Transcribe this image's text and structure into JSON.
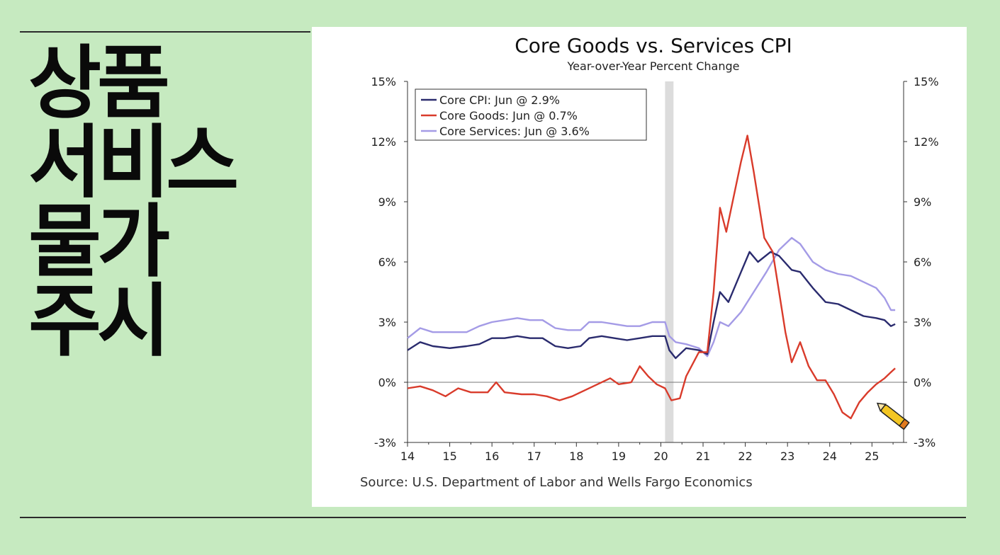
{
  "side_title": {
    "lines": [
      "상품",
      "서비스",
      "물가",
      "주시"
    ]
  },
  "stray_mark": "o",
  "chart_data": {
    "type": "line",
    "title": "Core Goods vs. Services CPI",
    "subtitle": "Year-over-Year Percent Change",
    "source": "Source: U.S. Department of Labor and Wells Fargo Economics",
    "xlim": [
      2014,
      2025.75
    ],
    "ylim": [
      -3,
      15
    ],
    "x_ticks": [
      14,
      15,
      16,
      17,
      18,
      19,
      20,
      21,
      22,
      23,
      24,
      25
    ],
    "x_tick_labels": [
      "14",
      "15",
      "16",
      "17",
      "18",
      "19",
      "20",
      "21",
      "22",
      "23",
      "24",
      "25"
    ],
    "y_ticks": [
      -3,
      0,
      3,
      6,
      9,
      12,
      15
    ],
    "y_tick_labels": [
      "-3%",
      "0%",
      "3%",
      "6%",
      "9%",
      "12%",
      "15%"
    ],
    "recession_band": [
      2020.1,
      2020.3
    ],
    "legend_position": "top-left",
    "series": [
      {
        "name": "Core Services",
        "legend": "Core Services: Jun @ 3.6%",
        "color": "#a49be6",
        "points": [
          [
            2014.0,
            2.2
          ],
          [
            2014.3,
            2.7
          ],
          [
            2014.6,
            2.5
          ],
          [
            2015.0,
            2.5
          ],
          [
            2015.4,
            2.5
          ],
          [
            2015.7,
            2.8
          ],
          [
            2016.0,
            3.0
          ],
          [
            2016.3,
            3.1
          ],
          [
            2016.6,
            3.2
          ],
          [
            2016.9,
            3.1
          ],
          [
            2017.2,
            3.1
          ],
          [
            2017.5,
            2.7
          ],
          [
            2017.8,
            2.6
          ],
          [
            2018.1,
            2.6
          ],
          [
            2018.3,
            3.0
          ],
          [
            2018.6,
            3.0
          ],
          [
            2018.9,
            2.9
          ],
          [
            2019.2,
            2.8
          ],
          [
            2019.5,
            2.8
          ],
          [
            2019.8,
            3.0
          ],
          [
            2020.1,
            3.0
          ],
          [
            2020.2,
            2.3
          ],
          [
            2020.35,
            2.0
          ],
          [
            2020.6,
            1.9
          ],
          [
            2020.9,
            1.7
          ],
          [
            2021.1,
            1.3
          ],
          [
            2021.25,
            2.0
          ],
          [
            2021.4,
            3.0
          ],
          [
            2021.6,
            2.8
          ],
          [
            2021.9,
            3.5
          ],
          [
            2022.2,
            4.5
          ],
          [
            2022.5,
            5.5
          ],
          [
            2022.8,
            6.6
          ],
          [
            2023.1,
            7.2
          ],
          [
            2023.3,
            6.9
          ],
          [
            2023.6,
            6.0
          ],
          [
            2023.9,
            5.6
          ],
          [
            2024.2,
            5.4
          ],
          [
            2024.5,
            5.3
          ],
          [
            2024.8,
            5.0
          ],
          [
            2025.1,
            4.7
          ],
          [
            2025.3,
            4.2
          ],
          [
            2025.45,
            3.6
          ],
          [
            2025.55,
            3.6
          ]
        ]
      },
      {
        "name": "Core CPI",
        "legend": "Core CPI: Jun @ 2.9%",
        "color": "#2a2b6e",
        "points": [
          [
            2014.0,
            1.6
          ],
          [
            2014.3,
            2.0
          ],
          [
            2014.6,
            1.8
          ],
          [
            2015.0,
            1.7
          ],
          [
            2015.4,
            1.8
          ],
          [
            2015.7,
            1.9
          ],
          [
            2016.0,
            2.2
          ],
          [
            2016.3,
            2.2
          ],
          [
            2016.6,
            2.3
          ],
          [
            2016.9,
            2.2
          ],
          [
            2017.2,
            2.2
          ],
          [
            2017.5,
            1.8
          ],
          [
            2017.8,
            1.7
          ],
          [
            2018.1,
            1.8
          ],
          [
            2018.3,
            2.2
          ],
          [
            2018.6,
            2.3
          ],
          [
            2018.9,
            2.2
          ],
          [
            2019.2,
            2.1
          ],
          [
            2019.5,
            2.2
          ],
          [
            2019.8,
            2.3
          ],
          [
            2020.1,
            2.3
          ],
          [
            2020.2,
            1.6
          ],
          [
            2020.35,
            1.2
          ],
          [
            2020.6,
            1.7
          ],
          [
            2020.9,
            1.6
          ],
          [
            2021.1,
            1.4
          ],
          [
            2021.25,
            3.0
          ],
          [
            2021.4,
            4.5
          ],
          [
            2021.6,
            4.0
          ],
          [
            2021.9,
            5.5
          ],
          [
            2022.1,
            6.5
          ],
          [
            2022.3,
            6.0
          ],
          [
            2022.6,
            6.5
          ],
          [
            2022.8,
            6.3
          ],
          [
            2023.1,
            5.6
          ],
          [
            2023.3,
            5.5
          ],
          [
            2023.6,
            4.7
          ],
          [
            2023.9,
            4.0
          ],
          [
            2024.2,
            3.9
          ],
          [
            2024.5,
            3.6
          ],
          [
            2024.8,
            3.3
          ],
          [
            2025.1,
            3.2
          ],
          [
            2025.3,
            3.1
          ],
          [
            2025.45,
            2.8
          ],
          [
            2025.55,
            2.9
          ]
        ]
      },
      {
        "name": "Core Goods",
        "legend": "Core Goods: Jun @ 0.7%",
        "color": "#d93b2b",
        "points": [
          [
            2014.0,
            -0.3
          ],
          [
            2014.3,
            -0.2
          ],
          [
            2014.6,
            -0.4
          ],
          [
            2014.9,
            -0.7
          ],
          [
            2015.2,
            -0.3
          ],
          [
            2015.5,
            -0.5
          ],
          [
            2015.9,
            -0.5
          ],
          [
            2016.1,
            0.0
          ],
          [
            2016.3,
            -0.5
          ],
          [
            2016.7,
            -0.6
          ],
          [
            2017.0,
            -0.6
          ],
          [
            2017.3,
            -0.7
          ],
          [
            2017.6,
            -0.9
          ],
          [
            2017.9,
            -0.7
          ],
          [
            2018.2,
            -0.4
          ],
          [
            2018.5,
            -0.1
          ],
          [
            2018.8,
            0.2
          ],
          [
            2019.0,
            -0.1
          ],
          [
            2019.3,
            0.0
          ],
          [
            2019.5,
            0.8
          ],
          [
            2019.7,
            0.3
          ],
          [
            2019.9,
            -0.1
          ],
          [
            2020.1,
            -0.3
          ],
          [
            2020.25,
            -0.9
          ],
          [
            2020.45,
            -0.8
          ],
          [
            2020.6,
            0.3
          ],
          [
            2020.9,
            1.5
          ],
          [
            2021.1,
            1.5
          ],
          [
            2021.25,
            4.5
          ],
          [
            2021.4,
            8.7
          ],
          [
            2021.55,
            7.5
          ],
          [
            2021.7,
            9.0
          ],
          [
            2021.9,
            11.0
          ],
          [
            2022.05,
            12.3
          ],
          [
            2022.2,
            10.5
          ],
          [
            2022.45,
            7.2
          ],
          [
            2022.65,
            6.5
          ],
          [
            2022.8,
            4.5
          ],
          [
            2022.95,
            2.5
          ],
          [
            2023.1,
            1.0
          ],
          [
            2023.3,
            2.0
          ],
          [
            2023.5,
            0.8
          ],
          [
            2023.7,
            0.1
          ],
          [
            2023.9,
            0.1
          ],
          [
            2024.1,
            -0.6
          ],
          [
            2024.3,
            -1.5
          ],
          [
            2024.5,
            -1.8
          ],
          [
            2024.7,
            -1.0
          ],
          [
            2024.9,
            -0.5
          ],
          [
            2025.1,
            -0.1
          ],
          [
            2025.3,
            0.2
          ],
          [
            2025.45,
            0.5
          ],
          [
            2025.55,
            0.7
          ]
        ]
      }
    ]
  }
}
